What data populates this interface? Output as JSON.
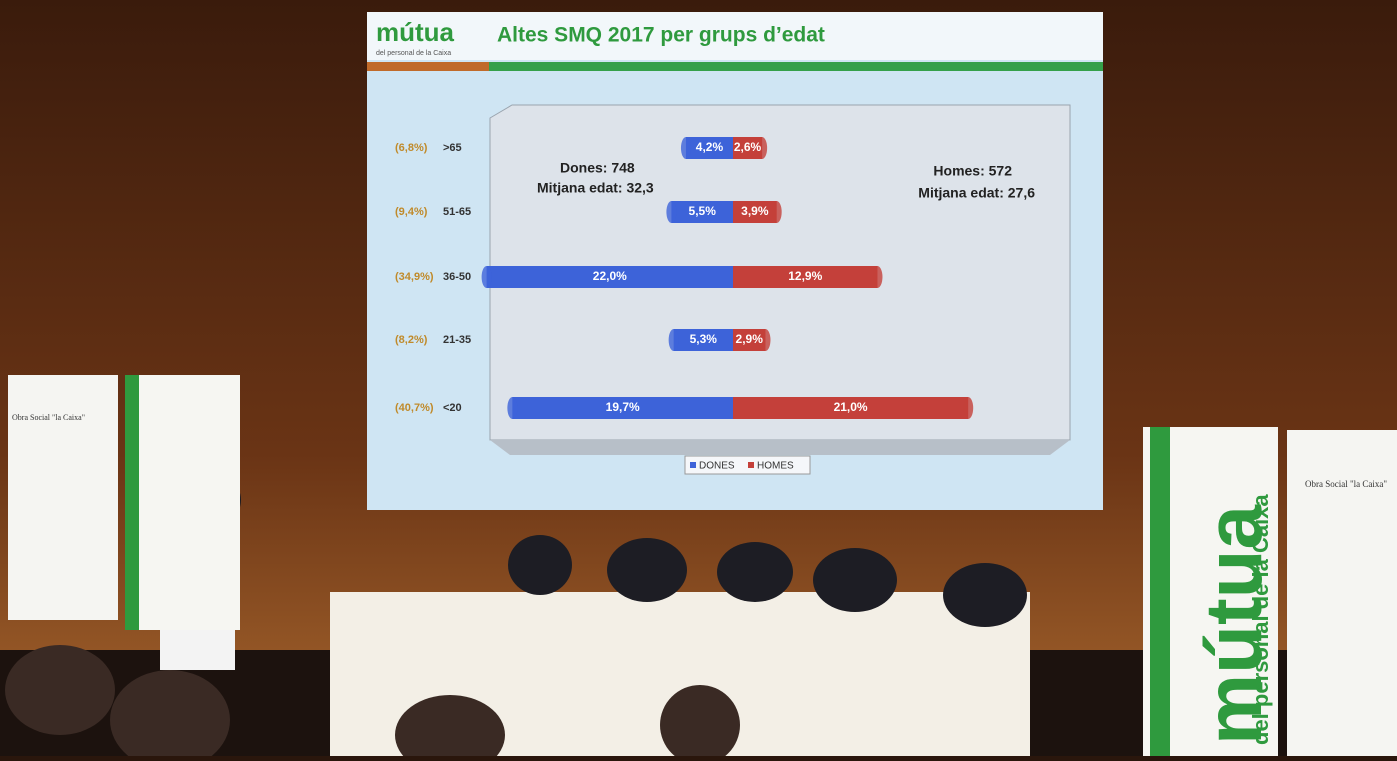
{
  "logo": {
    "name": "mútua",
    "tagline": "del personal de la Caixa"
  },
  "banners": {
    "obra_social": "Obra Social \"la Caixa\"",
    "mutua_name": "mútua",
    "mutua_tagline": "del personal de la Caixa"
  },
  "chart_data": {
    "type": "bar",
    "title": "Altes SMQ 2017 per grups d’edat",
    "categories": [
      ">65",
      "51-65",
      "36-50",
      "21-35",
      "<20"
    ],
    "totals": {
      "values": [
        6.8,
        9.4,
        34.9,
        8.2,
        40.7
      ],
      "value_labels": [
        "(6,8%)",
        "(9,4%)",
        "(34,9%)",
        "(8,2%)",
        "(40,7%)"
      ]
    },
    "series": [
      {
        "name": "DONES",
        "color": "#3d63d9",
        "values": [
          4.2,
          5.5,
          22.0,
          5.3,
          19.7
        ],
        "value_labels": [
          "4,2%",
          "5,5%",
          "22,0%",
          "5,3%",
          "19,7%"
        ]
      },
      {
        "name": "HOMES",
        "color": "#c4403a",
        "values": [
          2.6,
          3.9,
          12.9,
          2.9,
          21.0
        ],
        "value_labels": [
          "2,6%",
          "3,9%",
          "12,9%",
          "2,9%",
          "21,0%"
        ]
      }
    ],
    "annotations": [
      "Dones: 748",
      "Mitjana edat: 32,3",
      "Homes: 572",
      "Mitjana edat: 27,6"
    ],
    "legend": "bottom"
  }
}
